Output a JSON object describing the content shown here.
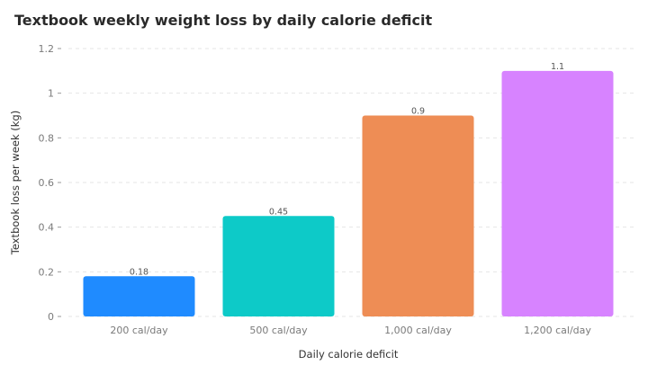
{
  "chart_data": {
    "type": "bar",
    "title": "Textbook weekly weight loss by daily calorie deficit",
    "xlabel": "Daily calorie deficit",
    "ylabel": "Textbook loss per week (kg)",
    "categories": [
      "200 cal/day",
      "500 cal/day",
      "1,000 cal/day",
      "1,200 cal/day"
    ],
    "values": [
      0.18,
      0.45,
      0.9,
      1.1
    ],
    "data_labels": [
      "0.18",
      "0.45",
      "0.9",
      "1.1"
    ],
    "colors": [
      "#1f8bff",
      "#0dcac8",
      "#ee8d55",
      "#d783ff"
    ],
    "ylim": [
      0,
      1.2
    ],
    "yticks": [
      "0",
      "0.2",
      "0.4",
      "0.6",
      "0.8",
      "1",
      "1.2"
    ],
    "grid": true,
    "legend": "none"
  }
}
